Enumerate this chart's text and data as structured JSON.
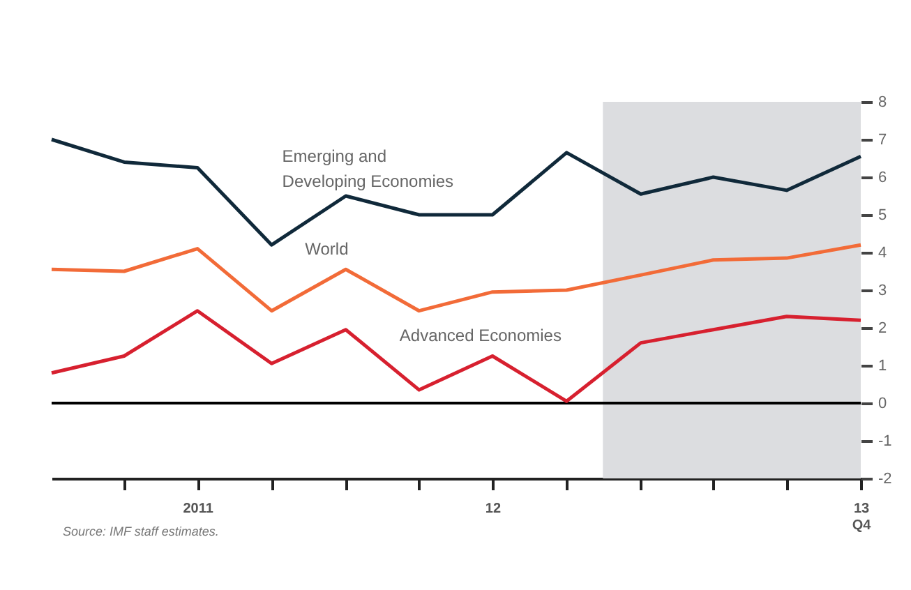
{
  "chart_data": {
    "type": "line",
    "x": [
      "2011-01",
      "2011-04",
      "2011-07",
      "2011-10",
      "2012-01",
      "2012-04",
      "2012-07",
      "2012-10",
      "2013-01",
      "2013-04",
      "2013-07",
      "2013-10"
    ],
    "xlim": [
      "2011-01",
      "2013-10"
    ],
    "xticks": [
      {
        "value": "2011-04",
        "label": null
      },
      {
        "value": "2011-07",
        "label": "2011"
      },
      {
        "value": "2011-10",
        "label": null
      },
      {
        "value": "2012-01",
        "label": null
      },
      {
        "value": "2012-04",
        "label": null
      },
      {
        "value": "2012-07",
        "label": "12"
      },
      {
        "value": "2012-10",
        "label": null
      },
      {
        "value": "2013-01",
        "label": null
      },
      {
        "value": "2013-04",
        "label": null
      },
      {
        "value": "2013-07",
        "label": null
      },
      {
        "value": "2013-10",
        "label": "13 Q4"
      }
    ],
    "ylim": [
      -2,
      8
    ],
    "yticks": [
      -2,
      -1,
      0,
      1,
      2,
      3,
      4,
      5,
      6,
      7,
      8
    ],
    "series": [
      {
        "name": "Emerging and Developing Economies",
        "color": "#10293a",
        "values": [
          7.0,
          6.4,
          6.25,
          4.2,
          5.5,
          5.0,
          5.0,
          6.65,
          5.55,
          6.0,
          5.65,
          6.55
        ]
      },
      {
        "name": "World",
        "color": "#f26b38",
        "values": [
          3.55,
          3.5,
          4.1,
          2.45,
          3.55,
          2.45,
          2.95,
          3.0,
          3.4,
          3.8,
          3.85,
          4.2
        ]
      },
      {
        "name": "Advanced Economies",
        "color": "#d7202f",
        "values": [
          0.8,
          1.25,
          2.45,
          1.05,
          1.95,
          0.35,
          1.25,
          0.05,
          1.6,
          1.95,
          2.3,
          2.2
        ]
      }
    ],
    "ref_lines": [
      {
        "axis": "y",
        "value": 0,
        "color": "#000000"
      }
    ],
    "bands": [
      {
        "axis": "x",
        "from": "2012-11-15",
        "to": "2013-10",
        "color": "#dcdde0"
      }
    ],
    "annotations": [
      "Source: IMF staff estimates."
    ],
    "grid": false,
    "legend": false
  }
}
